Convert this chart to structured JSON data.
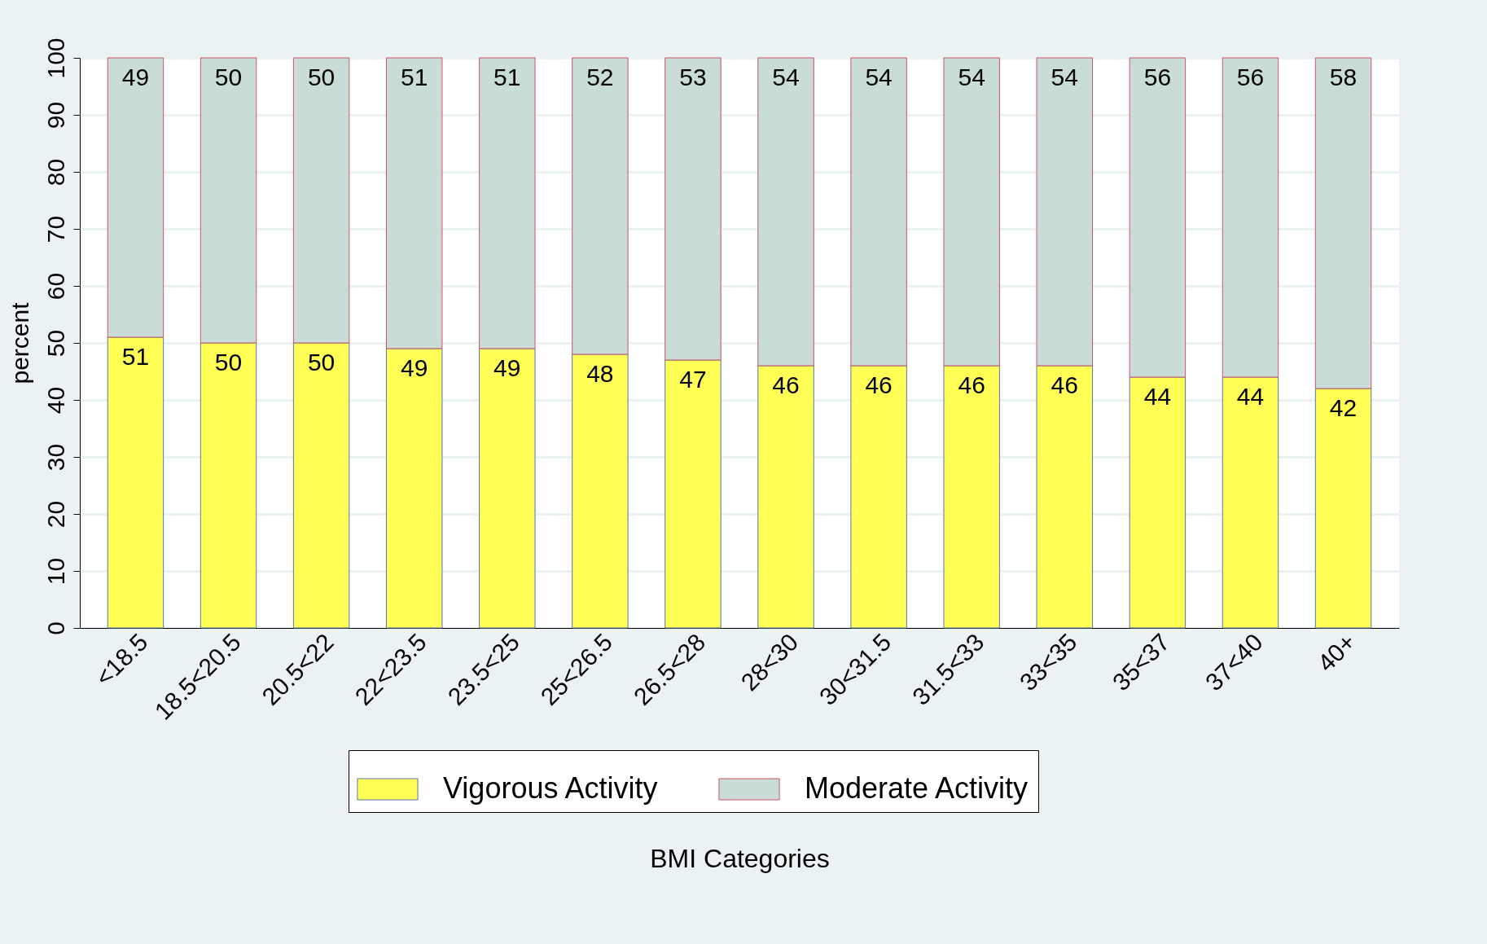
{
  "chart_data": {
    "type": "bar",
    "stacked": true,
    "xlabel": "BMI Categories",
    "ylabel": "percent",
    "categories": [
      "<18.5",
      "18.5<20.5",
      "20.5<22",
      "22<23.5",
      "23.5<25",
      "25<26.5",
      "26.5<28",
      "28<30",
      "30<31.5",
      "31.5<33",
      "33<35",
      "35<37",
      "37<40",
      "40+"
    ],
    "series": [
      {
        "name": "Vigorous Activity",
        "color": "#ffff55",
        "values": [
          51,
          50,
          50,
          49,
          49,
          48,
          47,
          46,
          46,
          46,
          46,
          44,
          44,
          42
        ]
      },
      {
        "name": "Moderate Activity",
        "color": "#c9dcd8",
        "values": [
          49,
          50,
          50,
          51,
          51,
          52,
          53,
          54,
          54,
          54,
          54,
          56,
          56,
          58
        ]
      }
    ],
    "ylim": [
      0,
      100
    ],
    "yticks": [
      0,
      10,
      20,
      30,
      40,
      50,
      60,
      70,
      80,
      90,
      100
    ],
    "grid": "y",
    "legend": "bottom",
    "data_labels": true
  }
}
